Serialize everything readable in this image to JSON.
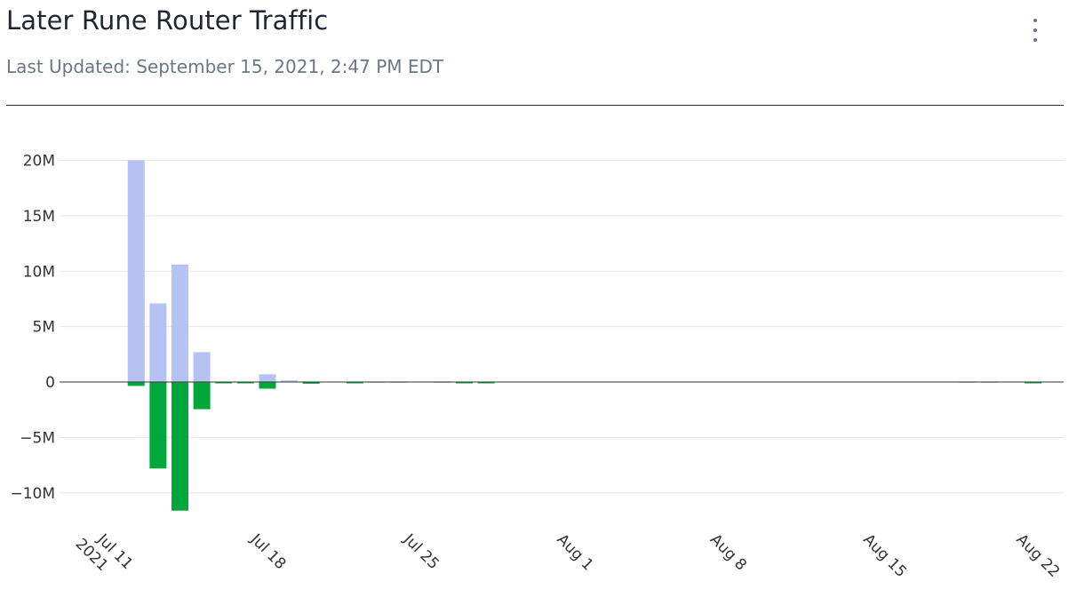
{
  "header": {
    "title": "Later Rune Router Traffic",
    "subtitle": "Last Updated: September 15, 2021, 2:47 PM EDT",
    "menu_icon": "more-vertical-icon"
  },
  "chart_data": {
    "type": "bar",
    "xlabel": "",
    "ylabel": "",
    "x_tick_labels": [
      {
        "date": "2021-07-11",
        "lines": [
          "Jul 11",
          "2021"
        ]
      },
      {
        "date": "2021-07-18",
        "lines": [
          "Jul 18"
        ]
      },
      {
        "date": "2021-07-25",
        "lines": [
          "Jul 25"
        ]
      },
      {
        "date": "2021-08-01",
        "lines": [
          "Aug 1"
        ]
      },
      {
        "date": "2021-08-08",
        "lines": [
          "Aug 8"
        ]
      },
      {
        "date": "2021-08-15",
        "lines": [
          "Aug 15"
        ]
      },
      {
        "date": "2021-08-22",
        "lines": [
          "Aug 22"
        ]
      }
    ],
    "xlim": [
      "2021-07-09",
      "2021-08-23"
    ],
    "ylim": [
      -12500000,
      21000000
    ],
    "y_ticks": [
      {
        "value": 20000000,
        "label": "20M"
      },
      {
        "value": 15000000,
        "label": "15M"
      },
      {
        "value": 10000000,
        "label": "10M"
      },
      {
        "value": 5000000,
        "label": "5M"
      },
      {
        "value": 0,
        "label": "0"
      },
      {
        "value": -5000000,
        "label": "−5M"
      },
      {
        "value": -10000000,
        "label": "−10M"
      }
    ],
    "grid": true,
    "colors": {
      "inbound": "#b6c3f2",
      "outbound": "#00a83c",
      "grid": "#e6e6e6",
      "zero": "#333333"
    },
    "x": [
      "2021-07-13",
      "2021-07-14",
      "2021-07-15",
      "2021-07-16",
      "2021-07-17",
      "2021-07-18",
      "2021-07-19",
      "2021-07-20",
      "2021-07-21",
      "2021-07-22",
      "2021-07-23",
      "2021-07-24",
      "2021-07-25",
      "2021-07-26",
      "2021-07-27",
      "2021-07-28",
      "2021-07-29",
      "2021-07-30",
      "2021-08-20",
      "2021-08-21",
      "2021-08-22",
      "2021-08-23"
    ],
    "series": [
      {
        "key": "inbound",
        "values": [
          20000000,
          7100000,
          10600000,
          2700000,
          0,
          0,
          700000,
          150000,
          50000,
          0,
          0,
          50000,
          50000,
          0,
          50000,
          0,
          0,
          0,
          50000,
          50000,
          0,
          0
        ]
      },
      {
        "key": "outbound",
        "values": [
          -350000,
          -7800000,
          -11600000,
          -2450000,
          -80000,
          -80000,
          -600000,
          0,
          -150000,
          0,
          -100000,
          0,
          0,
          0,
          0,
          -100000,
          -100000,
          0,
          0,
          0,
          0,
          -120000
        ]
      }
    ]
  }
}
